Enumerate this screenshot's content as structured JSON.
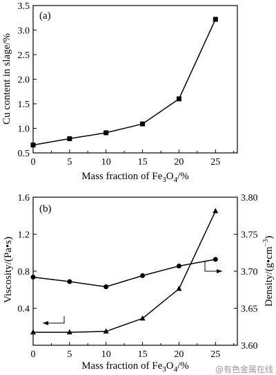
{
  "chart_data": [
    {
      "type": "line",
      "panel_label": "(a)",
      "xlabel": "Mass fraction of Fe3O4/%",
      "ylabel": "Cu content in slage/%",
      "xlim": [
        0,
        28
      ],
      "ylim": [
        0.5,
        3.5
      ],
      "xticks": [
        0,
        5,
        10,
        15,
        20,
        25
      ],
      "yticks": [
        0.5,
        1.0,
        1.5,
        2.0,
        2.5,
        3.0,
        3.5
      ],
      "ytick_labels": [
        "0.5",
        "1.0",
        "1.5",
        "2.0",
        "2.5",
        "3.0",
        "3.5"
      ],
      "grid": false,
      "series": [
        {
          "marker": "square",
          "x": [
            0,
            5,
            10,
            15,
            20,
            25
          ],
          "y": [
            0.66,
            0.79,
            0.91,
            1.09,
            1.6,
            3.22
          ]
        }
      ]
    },
    {
      "type": "line",
      "panel_label": "(b)",
      "xlabel": "Mass fraction of Fe3O4/%",
      "ylabel": "Viscosity/(Pa•s)",
      "ylabel_right": "Density/(g•cm−3)",
      "xlim": [
        0,
        28
      ],
      "ylim": [
        0,
        1.6
      ],
      "ylim_right": [
        3.6,
        3.8
      ],
      "xticks": [
        0,
        5,
        10,
        15,
        20,
        25
      ],
      "yticks": [
        0.4,
        0.8,
        1.2,
        1.6
      ],
      "ytick_labels": [
        "0.4",
        "0.8",
        "1.2",
        "1.6"
      ],
      "yticks_right": [
        3.6,
        3.65,
        3.7,
        3.75,
        3.8
      ],
      "ytick_labels_right": [
        "3.60",
        "3.65",
        "3.70",
        "3.75",
        "3.80"
      ],
      "grid": false,
      "series": [
        {
          "marker": "circle",
          "axis": "right",
          "x": [
            0,
            5,
            10,
            15,
            20,
            25
          ],
          "y": [
            3.692,
            3.686,
            3.679,
            3.694,
            3.707,
            3.716
          ]
        },
        {
          "marker": "triangle",
          "axis": "left",
          "x": [
            0,
            5,
            10,
            15,
            20,
            25
          ],
          "y": [
            0.14,
            0.14,
            0.15,
            0.29,
            0.61,
            1.45
          ]
        }
      ]
    }
  ],
  "watermark": "@有色金属在线"
}
